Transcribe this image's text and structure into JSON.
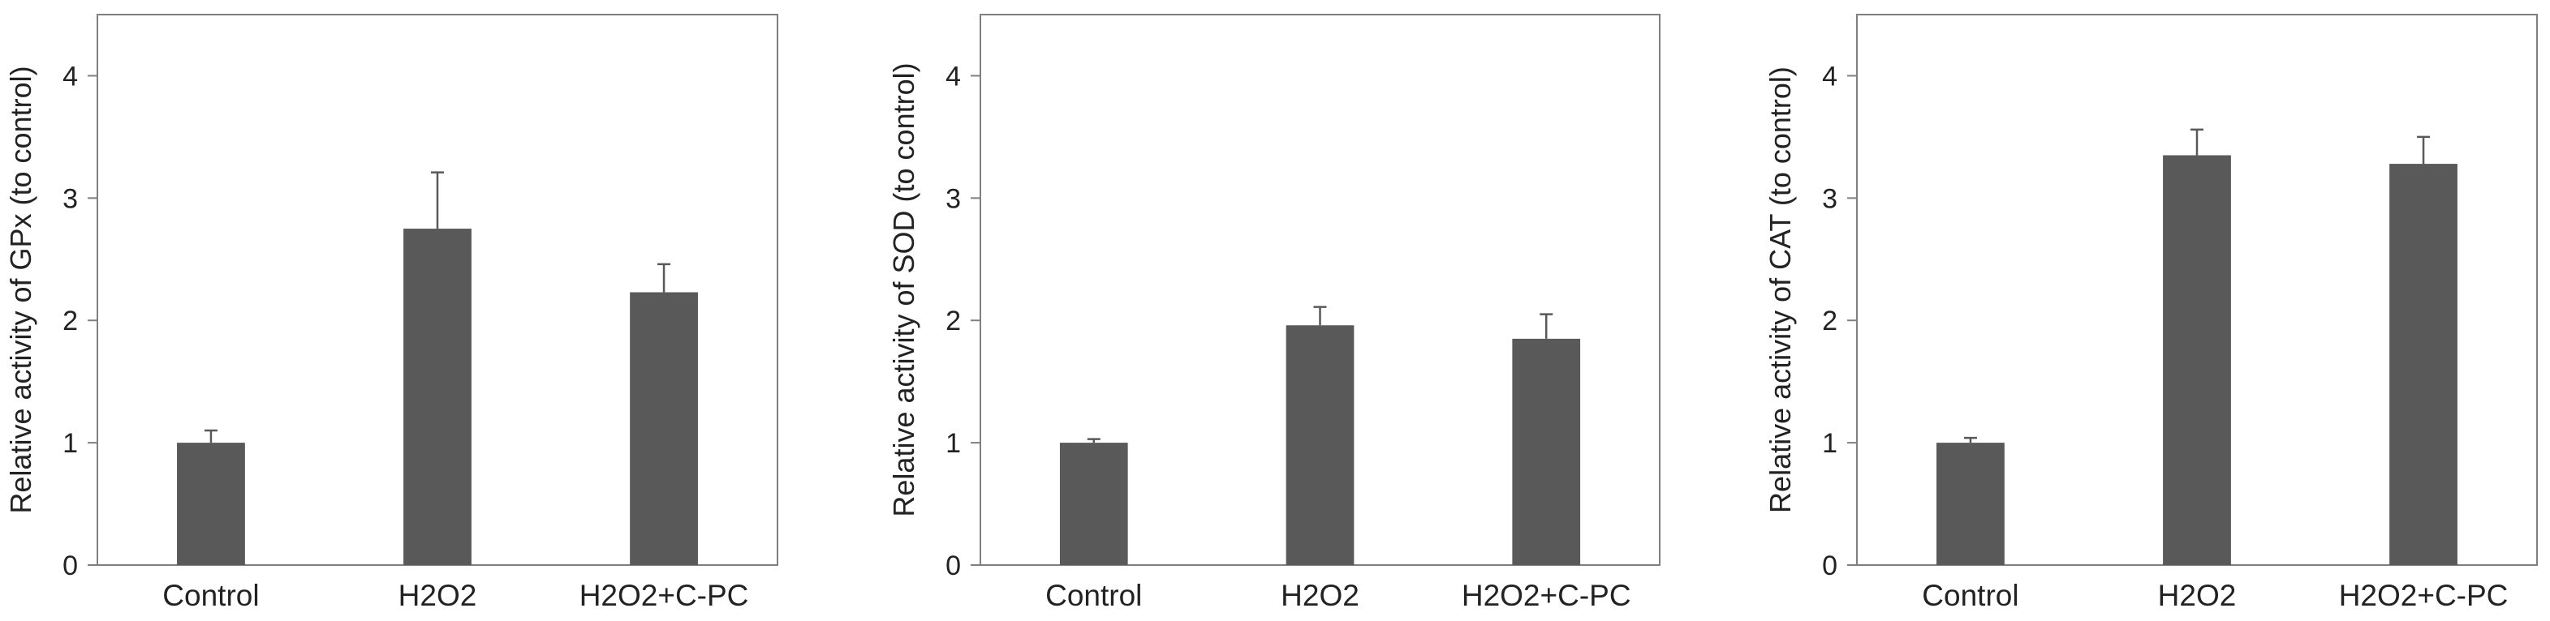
{
  "chart_data": [
    {
      "type": "bar",
      "categories": [
        "Control",
        "H2O2",
        "H2O2+C-PC"
      ],
      "values": [
        1.0,
        2.75,
        2.23
      ],
      "errors": [
        0.1,
        0.46,
        0.23
      ],
      "ylabel": "Relative activity of GPx (to control)",
      "xlabel": "",
      "title": "",
      "ylim": [
        0,
        4.5
      ],
      "yticks": [
        0,
        1,
        2,
        3,
        4
      ],
      "bar_color": "#595959",
      "grid": false
    },
    {
      "type": "bar",
      "categories": [
        "Control",
        "H2O2",
        "H2O2+C-PC"
      ],
      "values": [
        1.0,
        1.96,
        1.85
      ],
      "errors": [
        0.03,
        0.15,
        0.2
      ],
      "ylabel": "Relative activity of SOD (to control)",
      "xlabel": "",
      "title": "",
      "ylim": [
        0,
        4.5
      ],
      "yticks": [
        0,
        1,
        2,
        3,
        4
      ],
      "bar_color": "#595959",
      "grid": false
    },
    {
      "type": "bar",
      "categories": [
        "Control",
        "H2O2",
        "H2O2+C-PC"
      ],
      "values": [
        1.0,
        3.35,
        3.28
      ],
      "errors": [
        0.04,
        0.21,
        0.22
      ],
      "ylabel": "Relative activity of CAT (to control)",
      "xlabel": "",
      "title": "",
      "ylim": [
        0,
        4.5
      ],
      "yticks": [
        0,
        1,
        2,
        3,
        4
      ],
      "bar_color": "#595959",
      "grid": false
    }
  ]
}
